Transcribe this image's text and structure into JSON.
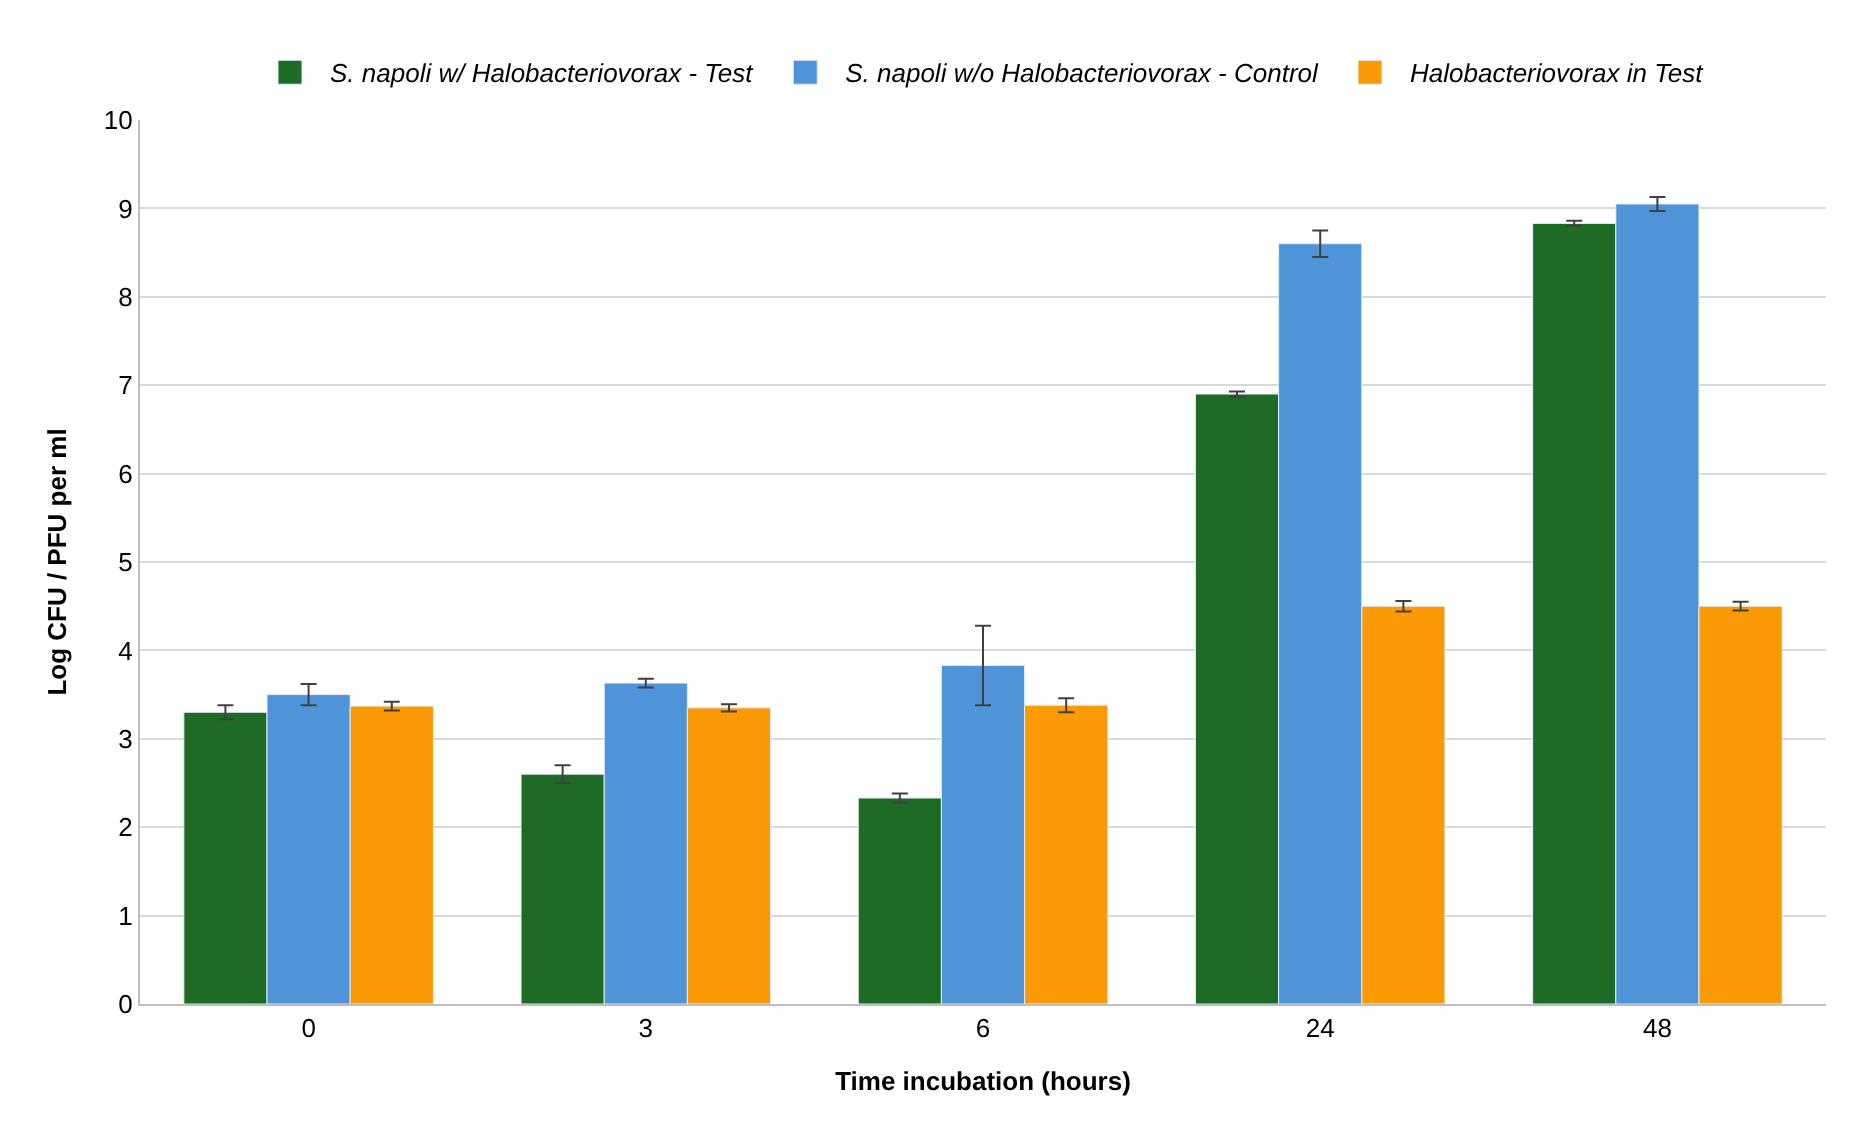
{
  "chart_data": {
    "type": "bar",
    "xlabel": "Time incubation (hours)",
    "ylabel": "Log CFU / PFU per ml",
    "categories": [
      "0",
      "3",
      "6",
      "24",
      "48"
    ],
    "series": [
      {
        "name": "S. napoli w/ Halobacteriovorax - Test",
        "color": "#1e6b25",
        "values": [
          3.3,
          2.6,
          2.33,
          6.9,
          8.83
        ],
        "errors": [
          0.08,
          0.1,
          0.05,
          0.03,
          0.03
        ]
      },
      {
        "name": "S. napoli w/o Halobacteriovorax - Control",
        "color": "#4f94d8",
        "values": [
          3.5,
          3.63,
          3.83,
          8.6,
          9.05
        ],
        "errors": [
          0.12,
          0.05,
          0.45,
          0.15,
          0.08
        ]
      },
      {
        "name": "Halobacteriovorax in Test",
        "color": "#fb9a06",
        "values": [
          3.37,
          3.35,
          3.38,
          4.5,
          4.5
        ],
        "errors": [
          0.05,
          0.04,
          0.08,
          0.06,
          0.05
        ]
      }
    ],
    "ylim": [
      0,
      10
    ],
    "yticks": [
      0,
      1,
      2,
      3,
      4,
      5,
      6,
      7,
      8,
      9,
      10
    ],
    "grid": "y",
    "legend": "top"
  }
}
